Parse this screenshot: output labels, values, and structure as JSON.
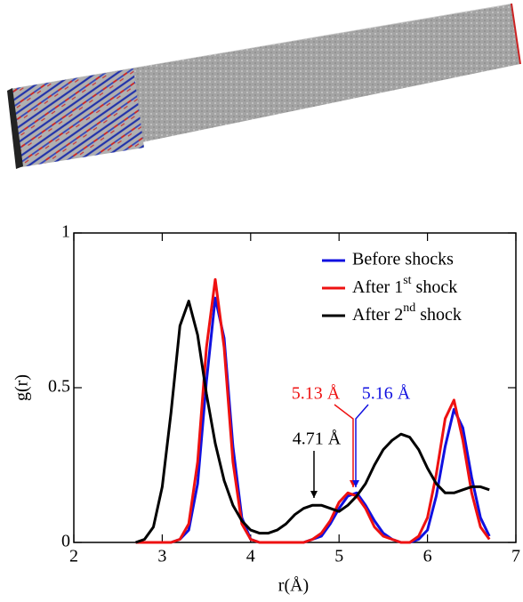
{
  "chart_data": {
    "type": "line",
    "x": [
      2.7,
      2.8,
      2.9,
      3.0,
      3.1,
      3.2,
      3.3,
      3.4,
      3.5,
      3.6,
      3.7,
      3.8,
      3.9,
      4.0,
      4.1,
      4.2,
      4.3,
      4.4,
      4.5,
      4.6,
      4.7,
      4.8,
      4.9,
      5.0,
      5.1,
      5.2,
      5.3,
      5.4,
      5.5,
      5.6,
      5.7,
      5.8,
      5.9,
      6.0,
      6.1,
      6.2,
      6.3,
      6.4,
      6.5,
      6.6,
      6.7
    ],
    "series": [
      {
        "name": "Before shocks",
        "color": "#1010e0",
        "values": [
          0,
          0,
          0,
          0,
          0,
          0.01,
          0.04,
          0.19,
          0.52,
          0.79,
          0.66,
          0.31,
          0.08,
          0.01,
          0,
          0,
          0,
          0,
          0,
          0,
          0.01,
          0.02,
          0.06,
          0.11,
          0.15,
          0.16,
          0.12,
          0.07,
          0.03,
          0.01,
          0,
          0,
          0.01,
          0.04,
          0.15,
          0.31,
          0.43,
          0.37,
          0.21,
          0.08,
          0.02
        ]
      },
      {
        "name": "After 1st shock",
        "color": "#ee1111",
        "values": [
          0,
          0,
          0,
          0,
          0,
          0.01,
          0.06,
          0.26,
          0.63,
          0.85,
          0.63,
          0.26,
          0.06,
          0.01,
          0,
          0,
          0,
          0,
          0,
          0,
          0.01,
          0.03,
          0.07,
          0.13,
          0.16,
          0.15,
          0.11,
          0.05,
          0.02,
          0.01,
          0,
          0,
          0.02,
          0.08,
          0.22,
          0.4,
          0.46,
          0.33,
          0.16,
          0.05,
          0.01
        ]
      },
      {
        "name": "After 2nd shock",
        "color": "#000000",
        "values": [
          0,
          0.01,
          0.05,
          0.18,
          0.42,
          0.7,
          0.78,
          0.67,
          0.48,
          0.32,
          0.2,
          0.12,
          0.07,
          0.04,
          0.03,
          0.03,
          0.04,
          0.06,
          0.09,
          0.11,
          0.12,
          0.12,
          0.11,
          0.1,
          0.12,
          0.15,
          0.19,
          0.25,
          0.3,
          0.33,
          0.35,
          0.34,
          0.3,
          0.24,
          0.19,
          0.16,
          0.16,
          0.17,
          0.18,
          0.18,
          0.17
        ]
      }
    ],
    "x_label": "r(Å)",
    "y_label": "g(r)",
    "xlim": [
      2,
      7
    ],
    "ylim": [
      0,
      1
    ],
    "xticks": [
      2,
      3,
      4,
      5,
      6,
      7
    ],
    "yticks": [
      0,
      0.5,
      1
    ],
    "legend": "top-right",
    "annotations": [
      {
        "text": "5.13 Å",
        "color": "#ee1111"
      },
      {
        "text": "5.16 Å",
        "color": "#1010e0"
      },
      {
        "text": "4.71 Å",
        "color": "#000000"
      }
    ]
  }
}
